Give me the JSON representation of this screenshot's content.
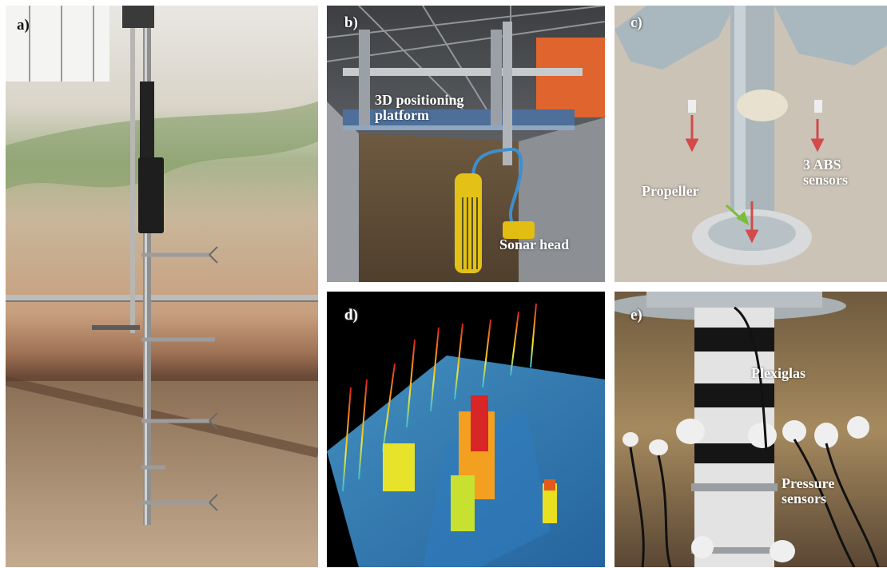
{
  "panels": {
    "a": {
      "label": "a)"
    },
    "b": {
      "label": "b)",
      "platform_text": "3D positioning platform",
      "sonar_text": "Sonar head"
    },
    "c": {
      "label": "c)",
      "propeller_text": "Propeller",
      "abs_text": "3 ABS sensors"
    },
    "d": {
      "label": "d)"
    },
    "e": {
      "label": "e)",
      "plexiglas_text": "Plexiglas",
      "pressure_text": "Pressure sensors"
    }
  }
}
